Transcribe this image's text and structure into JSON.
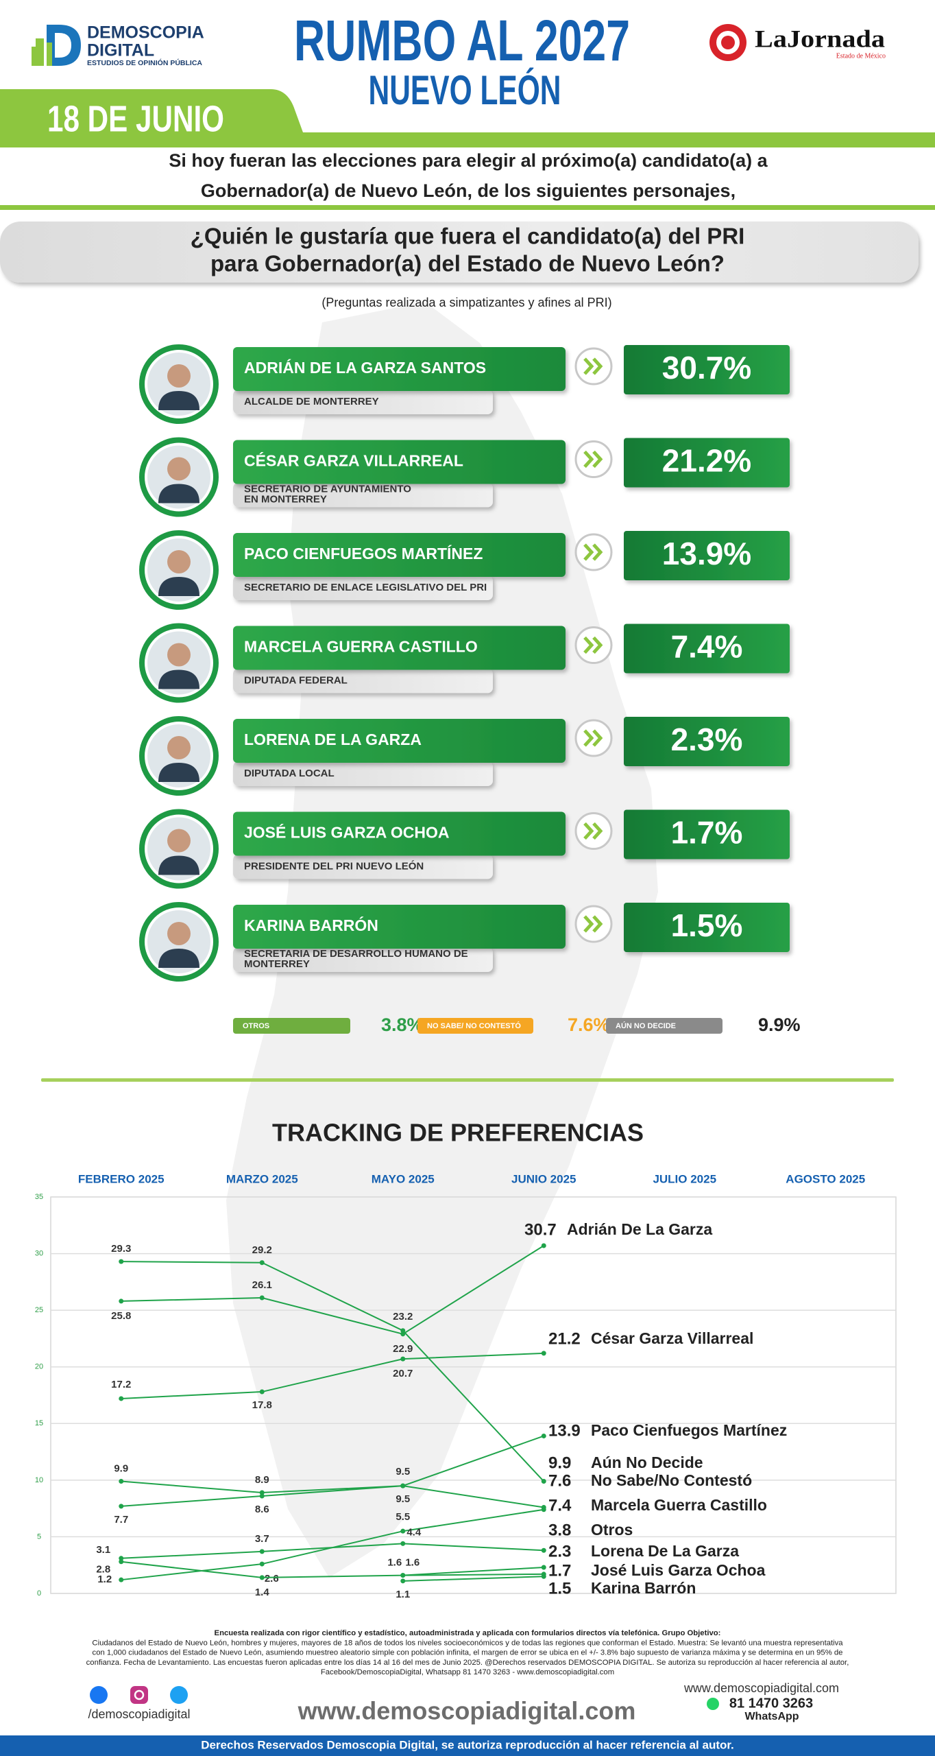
{
  "header": {
    "logo": [
      "DEMOSCOPIA",
      "DIGITAL",
      "ESTUDIOS DE OPINIÓN PÚBLICA"
    ],
    "title": "RUMBO AL 2027",
    "subtitle": "NUEVO LEÓN",
    "partner": "LaJornada",
    "partner_sub": "Estado de México",
    "date": "18 DE JUNIO"
  },
  "intro": [
    "Si hoy fueran las elecciones para elegir al próximo(a) candidato(a) a",
    "Gobernador(a) de Nuevo León, de los siguientes personajes,"
  ],
  "question": [
    "¿Quién le gustaría que fuera el candidato(a) del PRI",
    "para Gobernador(a) del Estado de Nuevo León?"
  ],
  "note": "(Preguntas realizada a simpatizantes y afines al PRI)",
  "candidates": [
    {
      "name": "ADRIÁN DE LA GARZA SANTOS",
      "role": [
        "ALCALDE DE MONTERREY"
      ],
      "result": "30.7%"
    },
    {
      "name": "CÉSAR GARZA VILLARREAL",
      "role": [
        "SECRETARIO DE AYUNTAMIENTO",
        "EN MONTERREY"
      ],
      "result": "21.2%"
    },
    {
      "name": "PACO CIENFUEGOS MARTÍNEZ",
      "role": [
        "SECRETARIO DE ENLACE LEGISLATIVO DEL PRI"
      ],
      "result": "13.9%"
    },
    {
      "name": "MARCELA GUERRA CASTILLO",
      "role": [
        "DIPUTADA FEDERAL"
      ],
      "result": "7.4%"
    },
    {
      "name": "LORENA DE LA GARZA",
      "role": [
        "DIPUTADA LOCAL"
      ],
      "result": "2.3%"
    },
    {
      "name": "JOSÉ LUIS GARZA OCHOA",
      "role": [
        "PRESIDENTE DEL PRI NUEVO LEÓN"
      ],
      "result": "1.7%"
    },
    {
      "name": "KARINA BARRÓN",
      "role": [
        "SECRETARIA DE DESARROLLO HUMANO DE",
        "MONTERREY"
      ],
      "result": "1.5%"
    }
  ],
  "others": [
    {
      "label": "OTROS",
      "result": "3.8%",
      "color": "#6fae3f",
      "text_color": "#2e9e48"
    },
    {
      "label": "NO SABE/ NO CONTESTÓ",
      "result": "7.6%",
      "color": "#f5a623",
      "text_color": "#f5a623"
    },
    {
      "label": "AÚN NO DECIDE",
      "result": "9.9%",
      "color": "#8a8a8a",
      "text_color": "#222222"
    }
  ],
  "chart_data": {
    "type": "line",
    "title": "TRACKING DE PREFERENCIAS",
    "categories": [
      "FEBRERO 2025",
      "MARZO 2025",
      "MAYO 2025",
      "JUNIO 2025",
      "JULIO 2025",
      "AGOSTO 2025"
    ],
    "series": [
      {
        "name": "Adrián De La Garza",
        "color": "#1fa34a",
        "values": [
          25.8,
          26.1,
          22.9,
          30.7,
          null,
          null
        ]
      },
      {
        "name": "César Garza Villarreal",
        "color": "#1fa34a",
        "values": [
          17.2,
          17.8,
          20.7,
          21.2,
          null,
          null
        ]
      },
      {
        "name": "Paco Cienfuegos Martínez",
        "color": "#1fa34a",
        "values": [
          7.7,
          8.6,
          9.5,
          13.9,
          null,
          null
        ]
      },
      {
        "name": "Aún No Decide",
        "color": "#1fa34a",
        "values": [
          29.3,
          29.2,
          23.2,
          9.9,
          null,
          null
        ]
      },
      {
        "name": "No Sabe/No Contestó",
        "color": "#1fa34a",
        "values": [
          9.9,
          8.9,
          9.5,
          7.6,
          null,
          null
        ]
      },
      {
        "name": "Marcela Guerra Castillo",
        "color": "#1fa34a",
        "values": [
          1.2,
          2.6,
          5.5,
          7.4,
          null,
          null
        ]
      },
      {
        "name": "Otros",
        "color": "#1fa34a",
        "values": [
          3.1,
          3.7,
          4.4,
          3.8,
          null,
          null
        ]
      },
      {
        "name": "Lorena De La Garza",
        "color": "#1fa34a",
        "values": [
          2.8,
          1.4,
          1.6,
          2.3,
          null,
          null
        ]
      },
      {
        "name": "José Luis Garza Ochoa",
        "color": "#1fa34a",
        "values": [
          null,
          null,
          1.6,
          1.7,
          null,
          null
        ]
      },
      {
        "name": "Karina Barrón",
        "color": "#1fa34a",
        "values": [
          null,
          null,
          1.1,
          1.5,
          null,
          null
        ]
      }
    ],
    "ylim": [
      0,
      35
    ],
    "yticks": [
      0,
      5,
      10,
      15,
      20,
      25,
      30,
      35
    ],
    "grid": true
  },
  "footer": {
    "methodology": [
      "Encuesta realizada con rigor científico y estadístico, autoadministrada y aplicada con formularios directos vía telefónica. Grupo Objetivo:",
      "Ciudadanos del Estado de Nuevo León, hombres y mujeres, mayores de 18 años de todos los niveles socioeconómicos y de todas las regiones que conforman el Estado. Muestra: Se levantó una muestra representativa",
      "con 1,000 ciudadanos del Estado de Nuevo León, asumiendo muestreo aleatorio simple con población infinita, el margen de error se ubica en el +/- 3.8% bajo supuesto de varianza máxima y se determina en un 95% de",
      "confianza. Fecha de Levantamiento. Las encuestas fueron aplicadas entre los días 14 al 16 del mes de Junio 2025. @Derechos reservados DEMOSCOPIA DIGITAL. Se autoriza su reproducción al hacer referencia al autor,",
      "Facebook/DemoscopiaDigital, Whatsapp 81 1470 3263 - www.demoscopiadigital.com"
    ],
    "social": "/demoscopiadigital",
    "site": "www.demoscopiadigital.com",
    "contact_site": "www.demoscopiadigital.com",
    "phone": "81 1470 3263",
    "whatsapp": "WhatsApp",
    "rights": "Derechos Reservados Demoscopia Digital, se autoriza reproducción al hacer referencia al autor."
  }
}
